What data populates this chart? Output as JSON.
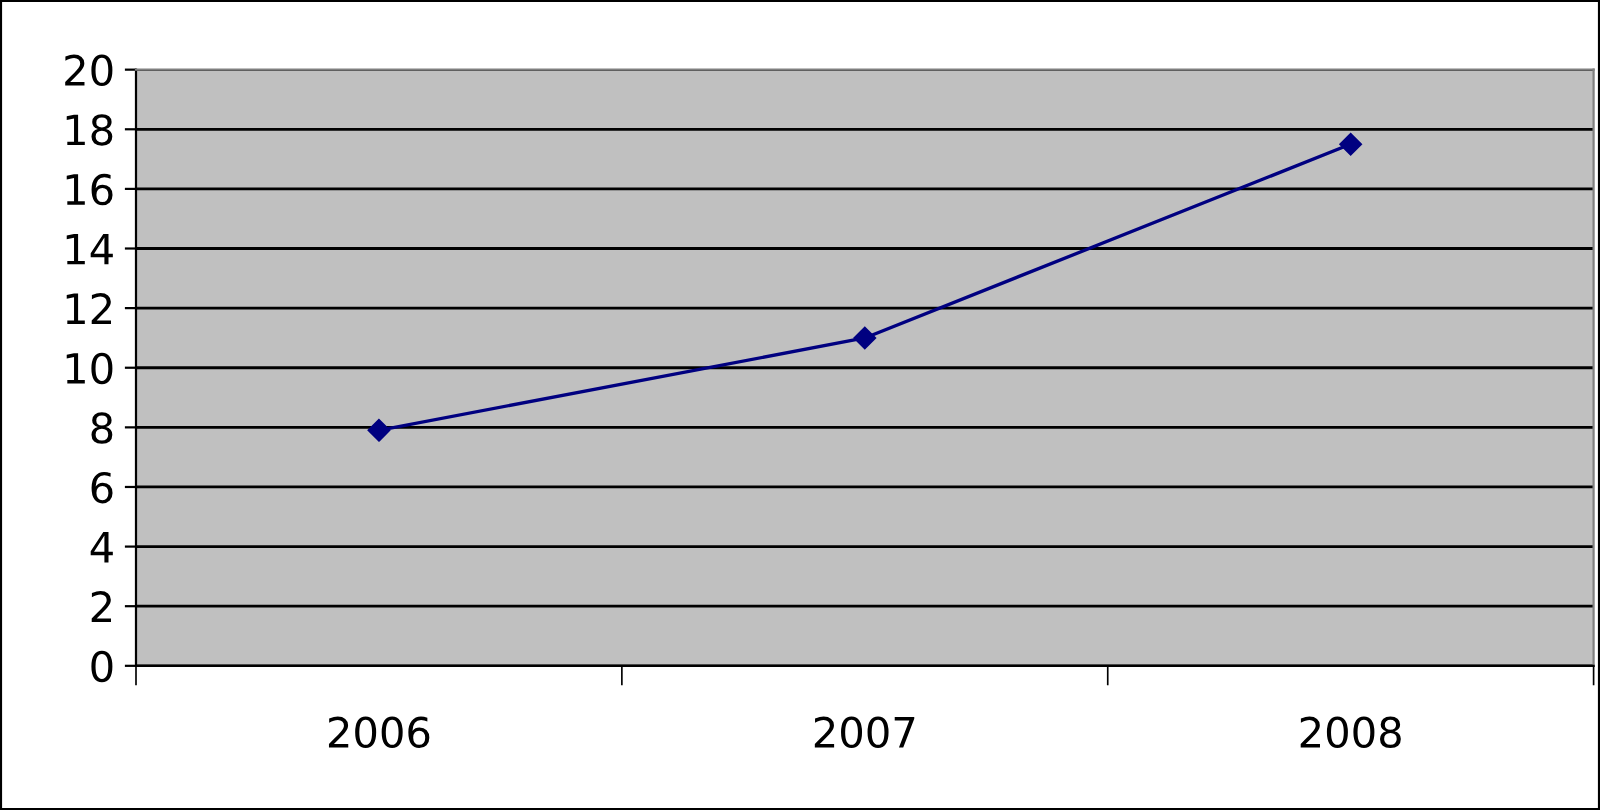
{
  "chart_data": {
    "type": "line",
    "categories": [
      "2006",
      "2007",
      "2008"
    ],
    "series": [
      {
        "color": "#000080",
        "values": [
          7.9,
          11,
          17.5
        ]
      }
    ],
    "ylim": [
      0,
      20
    ],
    "yticks": [
      0,
      2,
      4,
      6,
      8,
      10,
      12,
      14,
      16,
      18,
      20
    ],
    "grid": "y",
    "marker": "diamond",
    "line_style": "solid",
    "legend": false
  }
}
